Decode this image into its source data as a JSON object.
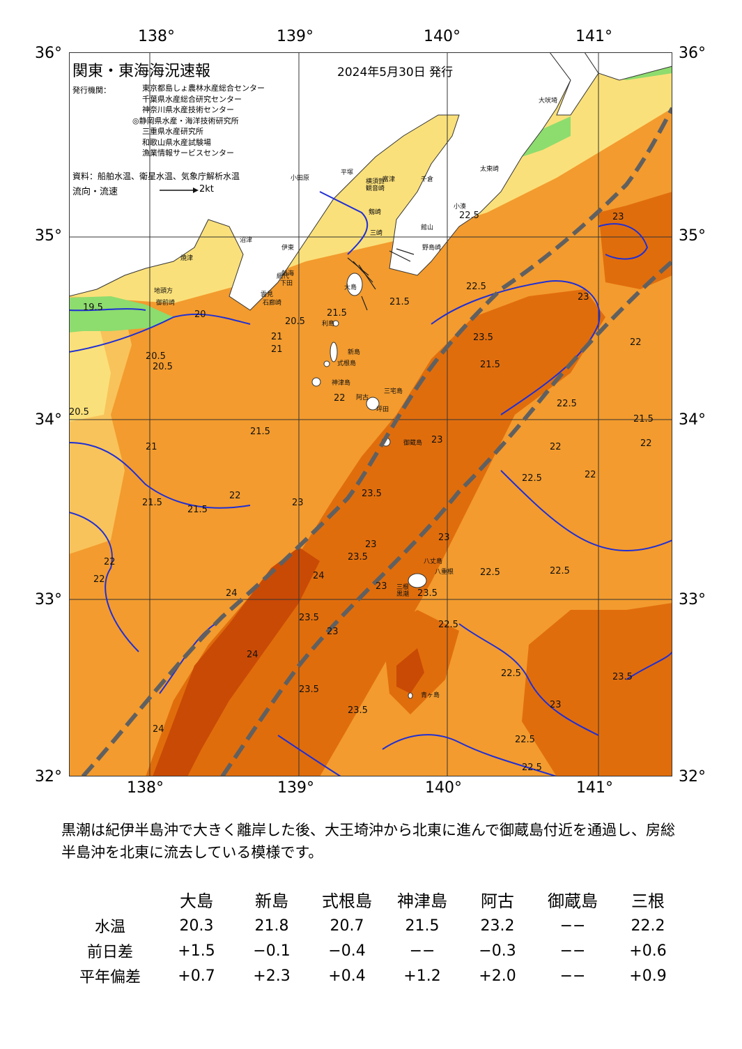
{
  "map": {
    "title": "関東・東海海況速報",
    "date": "2024年5月30日 発行",
    "issuer_label": "発行機関：",
    "issuers": [
      "東京都島しょ農林水産総合センター",
      "千葉県水産総合研究センター",
      "神奈川県水産技術センター",
      "◎静岡県水産・海洋技術研究所",
      "三重県水産研究所",
      "和歌山県水産試験場",
      "漁業情報サービスセンター"
    ],
    "source": "資料：船舶水温、衛星水温、気象庁解析水温",
    "flow_label": "流向・流速",
    "flow_scale": "2kt",
    "lon_labels": [
      "138°",
      "139°",
      "140°",
      "141°"
    ],
    "lat_labels": [
      "36°",
      "35°",
      "34°",
      "33°",
      "32°"
    ],
    "colors": {
      "land": "#ffffff",
      "warm_core": "#c94a05",
      "warm": "#e06d0c",
      "mid": "#f39b2e",
      "cool": "#f8c35a",
      "cooler": "#fae07a",
      "coldest": "#8ddc6e",
      "isotherm": "#1f2fd6",
      "kuroshio_axis": "#606060"
    },
    "place_names": [
      "大吠埼",
      "太東崎",
      "小湊",
      "野島崎",
      "館山",
      "千倉",
      "富津",
      "横須賀",
      "観音崎",
      "剱崎",
      "三崎",
      "平塚",
      "小田原",
      "熱海",
      "伊東",
      "沼津",
      "焼津",
      "御前崎",
      "地頭方",
      "下田",
      "石廊崎",
      "雲見",
      "網代",
      "利島",
      "新島",
      "式根島",
      "神津島",
      "三宅島",
      "坪田",
      "阿古",
      "御蔵島",
      "八丈島",
      "八重根",
      "青ヶ島",
      "大島",
      "黒潮",
      "三根"
    ],
    "contour_labels": [
      "19.5",
      "20",
      "20.5",
      "20.5",
      "21",
      "21",
      "21",
      "21.5",
      "21.5",
      "21.5",
      "21.5",
      "21.5",
      "21.5",
      "22",
      "22",
      "22",
      "22",
      "22",
      "22",
      "22",
      "22.5",
      "22.5",
      "22.5",
      "22.5",
      "22.5",
      "22.5",
      "22.5",
      "22.5",
      "22.5",
      "22.5",
      "23",
      "23",
      "23",
      "23",
      "23",
      "23",
      "23",
      "23",
      "23",
      "23.5",
      "23.5",
      "23.5",
      "23.5",
      "23.5",
      "23.5",
      "23.5",
      "23.5",
      "24",
      "24",
      "24",
      "24",
      "20.5",
      "20.5",
      "21.5",
      "22"
    ]
  },
  "summary": "黒潮は紀伊半島沖で大きく離岸した後、大王埼沖から北東に進んで御蔵島付近を通過し、房総半島沖を北東に流去している模様です。",
  "table": {
    "columns": [
      "大島",
      "新島",
      "式根島",
      "神津島",
      "阿古",
      "御蔵島",
      "三根"
    ],
    "rows": [
      {
        "label": "水温",
        "values": [
          "20.3",
          "21.8",
          "20.7",
          "21.5",
          "23.2",
          "−−",
          "22.2"
        ]
      },
      {
        "label": "前日差",
        "values": [
          "+1.5",
          "−0.1",
          "−0.4",
          "−−",
          "−0.3",
          "−−",
          "+0.6"
        ]
      },
      {
        "label": "平年偏差",
        "values": [
          "+0.7",
          "+2.3",
          "+0.4",
          "+1.2",
          "+2.0",
          "−−",
          "+0.9"
        ]
      }
    ]
  }
}
